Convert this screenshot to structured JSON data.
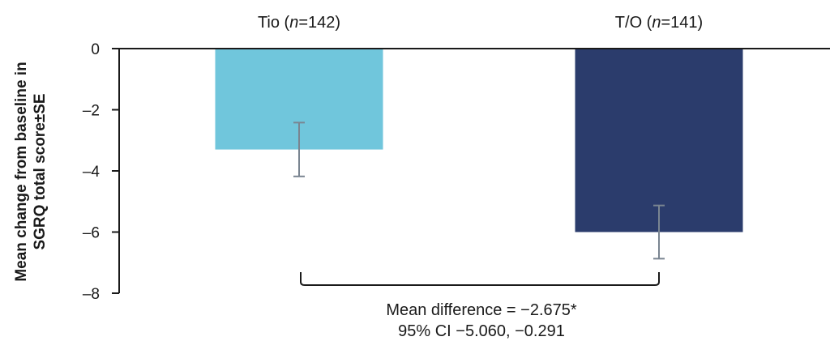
{
  "chart_data": {
    "type": "bar",
    "categories": [
      {
        "name": "Tio",
        "n_label": "n",
        "n_rest": "=142"
      },
      {
        "name": "T/O",
        "n_label": "n",
        "n_rest": "=141"
      }
    ],
    "values": [
      -3.3,
      -6.0
    ],
    "error_se": [
      0.88,
      0.87
    ],
    "colors": [
      "#70c6dc",
      "#2b3c6c"
    ],
    "error_color": "#7a8591",
    "ylabel_lines": [
      "Mean change from baseline in",
      "SGRQ total score±SE"
    ],
    "ylim": [
      -8,
      0
    ],
    "yticks": [
      0,
      -2,
      -4,
      -6,
      -8
    ],
    "ytick_labels": [
      "0",
      "–2",
      "–4",
      "–6",
      "–8"
    ],
    "annotation": {
      "line1": "Mean difference = −2.675*",
      "line2": "95% CI −5.060, −0.291"
    },
    "grid": false,
    "legend": "none"
  }
}
